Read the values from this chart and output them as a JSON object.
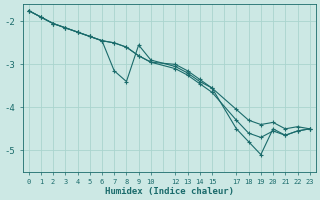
{
  "xlabel": "Humidex (Indice chaleur)",
  "ylabel": "",
  "bg_color": "#cce8e4",
  "grid_color": "#aad4ce",
  "line_color": "#1a6b6b",
  "xticks": [
    0,
    1,
    2,
    3,
    4,
    5,
    6,
    7,
    8,
    9,
    10,
    12,
    13,
    14,
    15,
    17,
    18,
    19,
    20,
    21,
    22,
    23
  ],
  "xlim": [
    -0.5,
    23.5
  ],
  "ylim": [
    -5.5,
    -1.6
  ],
  "yticks": [
    -5,
    -4,
    -3,
    -2
  ],
  "lines": [
    {
      "x": [
        0,
        1,
        2,
        3,
        4,
        5,
        6,
        7,
        8,
        9,
        10,
        12,
        13,
        14,
        15,
        17,
        18,
        19,
        20,
        21,
        22,
        23
      ],
      "y": [
        -1.75,
        -1.9,
        -2.05,
        -2.15,
        -2.25,
        -2.35,
        -2.45,
        -2.5,
        -2.6,
        -2.8,
        -2.95,
        -3.1,
        -3.25,
        -3.45,
        -3.65,
        -4.3,
        -4.6,
        -4.7,
        -4.55,
        -4.65,
        -4.55,
        -4.5
      ]
    },
    {
      "x": [
        0,
        1,
        2,
        3,
        4,
        5,
        6,
        7,
        8,
        9,
        10,
        12,
        13,
        14,
        15,
        17,
        18,
        19,
        20,
        21,
        22,
        23
      ],
      "y": [
        -1.75,
        -1.9,
        -2.05,
        -2.15,
        -2.25,
        -2.35,
        -2.45,
        -3.15,
        -3.4,
        -2.55,
        -2.9,
        -3.05,
        -3.2,
        -3.4,
        -3.55,
        -4.5,
        -4.8,
        -5.1,
        -4.5,
        -4.65,
        -4.55,
        -4.5
      ]
    },
    {
      "x": [
        0,
        1,
        2,
        3,
        4,
        5,
        6,
        7,
        8,
        9,
        10,
        12,
        13,
        14,
        15,
        17,
        18,
        19,
        20,
        21,
        22,
        23
      ],
      "y": [
        -1.75,
        -1.9,
        -2.05,
        -2.15,
        -2.25,
        -2.35,
        -2.45,
        -2.5,
        -2.6,
        -2.8,
        -2.95,
        -3.0,
        -3.15,
        -3.35,
        -3.55,
        -4.05,
        -4.3,
        -4.4,
        -4.35,
        -4.5,
        -4.45,
        -4.5
      ]
    }
  ]
}
